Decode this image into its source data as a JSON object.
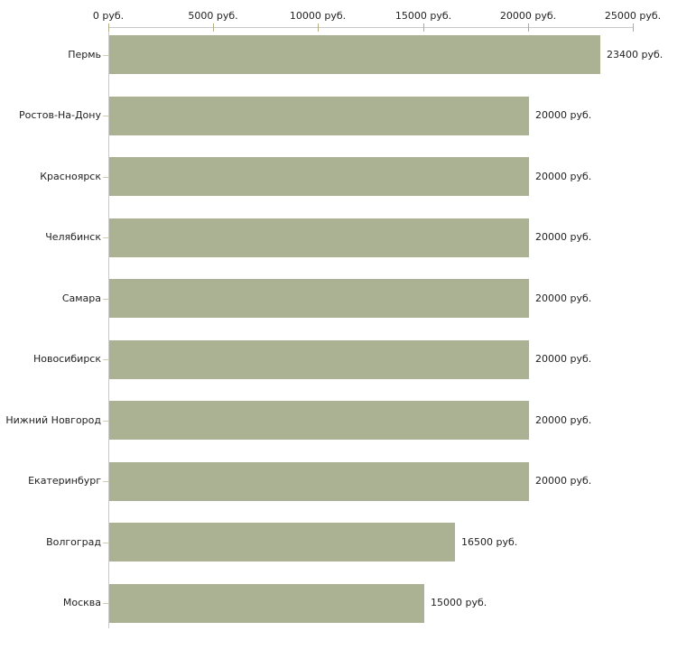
{
  "chart_data": {
    "type": "bar",
    "orientation": "horizontal",
    "title": "",
    "xlabel": "",
    "ylabel": "",
    "unit": "руб.",
    "grid": false,
    "legend": false,
    "xlim": [
      0,
      25000
    ],
    "x_ticks": [
      0,
      5000,
      10000,
      15000,
      20000,
      25000
    ],
    "x_tick_labels": [
      "0 руб.",
      "5000 руб.",
      "10000 руб.",
      "15000 руб.",
      "20000 руб.",
      "25000 руб."
    ],
    "categories": [
      "Пермь",
      "Ростов-На-Дону",
      "Красноярск",
      "Челябинск",
      "Самара",
      "Новосибирск",
      "Нижний Новгород",
      "Екатеринбург",
      "Волгоград",
      "Москва"
    ],
    "values": [
      23400,
      20000,
      20000,
      20000,
      20000,
      20000,
      20000,
      20000,
      16500,
      15000
    ],
    "value_labels": [
      "23400 руб.",
      "20000 руб.",
      "20000 руб.",
      "20000 руб.",
      "20000 руб.",
      "20000 руб.",
      "20000 руб.",
      "20000 руб.",
      "16500 руб.",
      "15000 руб."
    ],
    "colors": {
      "bar": "#abb294",
      "axis": "#c9c9c9",
      "x_tick": "#b5ae83",
      "y_tick": "#cfccb0",
      "text": "#222222",
      "background": "#ffffff"
    }
  }
}
